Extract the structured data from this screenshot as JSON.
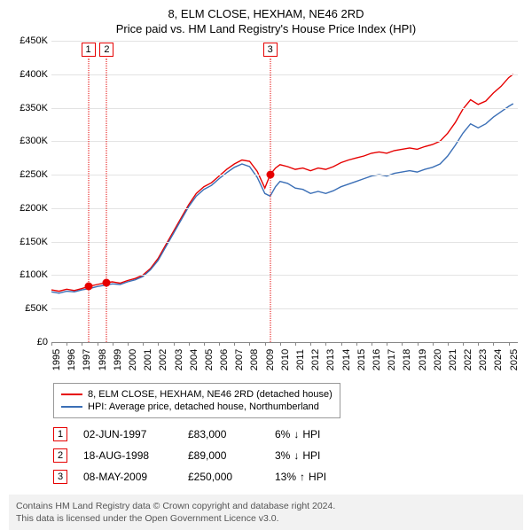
{
  "title_line1": "8, ELM CLOSE, HEXHAM, NE46 2RD",
  "title_line2": "Price paid vs. HM Land Registry's House Price Index (HPI)",
  "chart": {
    "type": "line",
    "background_color": "#ffffff",
    "grid_color": "#e3e3e3",
    "axis_color": "#888888",
    "tick_font_size": 11,
    "y": {
      "min": 0,
      "max": 450000,
      "step": 50000,
      "labels": [
        "£0",
        "£50K",
        "£100K",
        "£150K",
        "£200K",
        "£250K",
        "£300K",
        "£350K",
        "£400K",
        "£450K"
      ]
    },
    "x": {
      "min": 1995,
      "max": 2025.6,
      "labels": [
        "1995",
        "1996",
        "1997",
        "1998",
        "1999",
        "2000",
        "2001",
        "2002",
        "2003",
        "2004",
        "2005",
        "2006",
        "2007",
        "2008",
        "2009",
        "2010",
        "2011",
        "2012",
        "2013",
        "2014",
        "2015",
        "2016",
        "2017",
        "2018",
        "2019",
        "2020",
        "2021",
        "2022",
        "2023",
        "2024",
        "2025"
      ]
    },
    "series": [
      {
        "name": "property",
        "label": "8, ELM CLOSE, HEXHAM, NE46 2RD (detached house)",
        "color": "#e60000",
        "line_width": 1.4,
        "points": [
          [
            1995.0,
            78000
          ],
          [
            1995.5,
            76000
          ],
          [
            1996.0,
            79000
          ],
          [
            1996.5,
            77000
          ],
          [
            1997.0,
            80000
          ],
          [
            1997.42,
            83000
          ],
          [
            1998.0,
            86000
          ],
          [
            1998.63,
            89000
          ],
          [
            1999.0,
            90000
          ],
          [
            1999.5,
            88000
          ],
          [
            2000.0,
            92000
          ],
          [
            2000.5,
            95000
          ],
          [
            2001.0,
            100000
          ],
          [
            2001.5,
            110000
          ],
          [
            2002.0,
            125000
          ],
          [
            2002.5,
            145000
          ],
          [
            2003.0,
            165000
          ],
          [
            2003.5,
            185000
          ],
          [
            2004.0,
            205000
          ],
          [
            2004.5,
            222000
          ],
          [
            2005.0,
            232000
          ],
          [
            2005.5,
            238000
          ],
          [
            2006.0,
            248000
          ],
          [
            2006.5,
            258000
          ],
          [
            2007.0,
            266000
          ],
          [
            2007.5,
            272000
          ],
          [
            2008.0,
            270000
          ],
          [
            2008.5,
            255000
          ],
          [
            2009.0,
            230000
          ],
          [
            2009.35,
            250000
          ],
          [
            2009.7,
            260000
          ],
          [
            2010.0,
            265000
          ],
          [
            2010.5,
            262000
          ],
          [
            2011.0,
            258000
          ],
          [
            2011.5,
            260000
          ],
          [
            2012.0,
            256000
          ],
          [
            2012.5,
            260000
          ],
          [
            2013.0,
            258000
          ],
          [
            2013.5,
            262000
          ],
          [
            2014.0,
            268000
          ],
          [
            2014.5,
            272000
          ],
          [
            2015.0,
            275000
          ],
          [
            2015.5,
            278000
          ],
          [
            2016.0,
            282000
          ],
          [
            2016.5,
            284000
          ],
          [
            2017.0,
            282000
          ],
          [
            2017.5,
            286000
          ],
          [
            2018.0,
            288000
          ],
          [
            2018.5,
            290000
          ],
          [
            2019.0,
            288000
          ],
          [
            2019.5,
            292000
          ],
          [
            2020.0,
            295000
          ],
          [
            2020.5,
            300000
          ],
          [
            2021.0,
            312000
          ],
          [
            2021.5,
            328000
          ],
          [
            2022.0,
            348000
          ],
          [
            2022.5,
            362000
          ],
          [
            2023.0,
            355000
          ],
          [
            2023.5,
            360000
          ],
          [
            2024.0,
            372000
          ],
          [
            2024.5,
            382000
          ],
          [
            2025.0,
            395000
          ],
          [
            2025.3,
            400000
          ]
        ]
      },
      {
        "name": "hpi",
        "label": "HPI: Average price, detached house, Northumberland",
        "color": "#3b6fb6",
        "line_width": 1.4,
        "points": [
          [
            1995.0,
            75000
          ],
          [
            1995.5,
            73000
          ],
          [
            1996.0,
            76000
          ],
          [
            1996.5,
            75000
          ],
          [
            1997.0,
            78000
          ],
          [
            1997.5,
            80000
          ],
          [
            1998.0,
            83000
          ],
          [
            1998.5,
            85000
          ],
          [
            1999.0,
            87000
          ],
          [
            1999.5,
            86000
          ],
          [
            2000.0,
            90000
          ],
          [
            2000.5,
            93000
          ],
          [
            2001.0,
            98000
          ],
          [
            2001.5,
            108000
          ],
          [
            2002.0,
            122000
          ],
          [
            2002.5,
            142000
          ],
          [
            2003.0,
            162000
          ],
          [
            2003.5,
            182000
          ],
          [
            2004.0,
            202000
          ],
          [
            2004.5,
            218000
          ],
          [
            2005.0,
            228000
          ],
          [
            2005.5,
            234000
          ],
          [
            2006.0,
            244000
          ],
          [
            2006.5,
            253000
          ],
          [
            2007.0,
            261000
          ],
          [
            2007.5,
            266000
          ],
          [
            2008.0,
            262000
          ],
          [
            2008.5,
            246000
          ],
          [
            2009.0,
            222000
          ],
          [
            2009.35,
            218000
          ],
          [
            2009.7,
            232000
          ],
          [
            2010.0,
            240000
          ],
          [
            2010.5,
            237000
          ],
          [
            2011.0,
            230000
          ],
          [
            2011.5,
            228000
          ],
          [
            2012.0,
            222000
          ],
          [
            2012.5,
            225000
          ],
          [
            2013.0,
            222000
          ],
          [
            2013.5,
            226000
          ],
          [
            2014.0,
            232000
          ],
          [
            2014.5,
            236000
          ],
          [
            2015.0,
            240000
          ],
          [
            2015.5,
            244000
          ],
          [
            2016.0,
            248000
          ],
          [
            2016.5,
            250000
          ],
          [
            2017.0,
            248000
          ],
          [
            2017.5,
            252000
          ],
          [
            2018.0,
            254000
          ],
          [
            2018.5,
            256000
          ],
          [
            2019.0,
            254000
          ],
          [
            2019.5,
            258000
          ],
          [
            2020.0,
            261000
          ],
          [
            2020.5,
            266000
          ],
          [
            2021.0,
            278000
          ],
          [
            2021.5,
            294000
          ],
          [
            2022.0,
            312000
          ],
          [
            2022.5,
            326000
          ],
          [
            2023.0,
            320000
          ],
          [
            2023.5,
            326000
          ],
          [
            2024.0,
            336000
          ],
          [
            2024.5,
            344000
          ],
          [
            2025.0,
            352000
          ],
          [
            2025.3,
            356000
          ]
        ]
      }
    ],
    "event_markers": {
      "box_border_color": "#e60000",
      "box_text_color": "#000000",
      "vline_color": "#e60000",
      "point_color": "#e60000",
      "events": [
        {
          "n": "1",
          "x": 1997.42,
          "y": 83000
        },
        {
          "n": "2",
          "x": 1998.63,
          "y": 89000
        },
        {
          "n": "3",
          "x": 2009.35,
          "y": 250000
        }
      ]
    }
  },
  "legend_items": [
    {
      "color": "#e60000",
      "text": "8, ELM CLOSE, HEXHAM, NE46 2RD (detached house)"
    },
    {
      "color": "#3b6fb6",
      "text": "HPI: Average price, detached house, Northumberland"
    }
  ],
  "events_table": [
    {
      "n": "1",
      "date": "02-JUN-1997",
      "price": "£83,000",
      "diff_pct": "6%",
      "diff_dir": "↓",
      "diff_label": "HPI"
    },
    {
      "n": "2",
      "date": "18-AUG-1998",
      "price": "£89,000",
      "diff_pct": "3%",
      "diff_dir": "↓",
      "diff_label": "HPI"
    },
    {
      "n": "3",
      "date": "08-MAY-2009",
      "price": "£250,000",
      "diff_pct": "13%",
      "diff_dir": "↑",
      "diff_label": "HPI"
    }
  ],
  "event_marker_color": "#e60000",
  "footer_line1": "Contains HM Land Registry data © Crown copyright and database right 2024.",
  "footer_line2": "This data is licensed under the Open Government Licence v3.0.",
  "footer_bg": "#f2f2f2"
}
